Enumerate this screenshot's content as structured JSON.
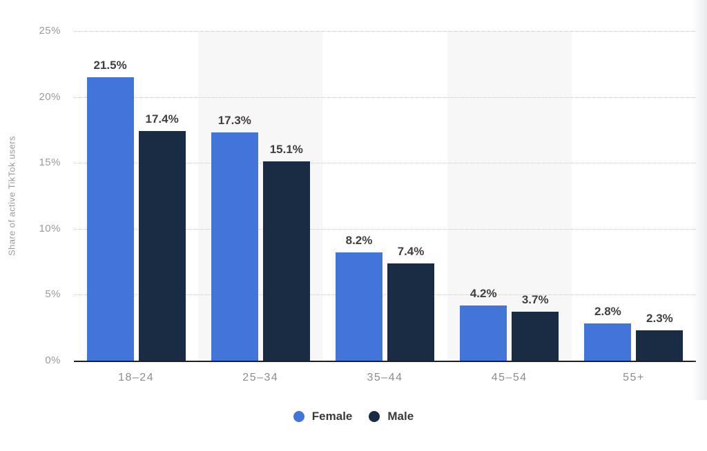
{
  "chart_data": {
    "type": "bar",
    "title": "",
    "categories": [
      "18–24",
      "25–34",
      "35–44",
      "45–54",
      "55+"
    ],
    "series": [
      {
        "name": "Female",
        "color": "#4375d9",
        "values": [
          21.5,
          17.3,
          8.2,
          4.2,
          2.8
        ],
        "labels": [
          "21.5%",
          "17.3%",
          "8.2%",
          "4.2%",
          "2.8%"
        ]
      },
      {
        "name": "Male",
        "color": "#1a2b44",
        "values": [
          17.4,
          15.1,
          7.4,
          3.7,
          2.3
        ],
        "labels": [
          "17.4%",
          "15.1%",
          "7.4%",
          "3.7%",
          "2.3%"
        ]
      }
    ],
    "xlabel": "",
    "ylabel": "Share of active TikTok users",
    "ylim": [
      0,
      25
    ],
    "yticks": [
      0,
      5,
      10,
      15,
      20,
      25
    ],
    "ytick_labels": [
      "0%",
      "5%",
      "10%",
      "15%",
      "20%",
      "25%"
    ],
    "value_suffix": "%",
    "grid": "horizontal-dotted",
    "legend_position": "bottom",
    "alternating_category_bands": [
      1,
      3
    ]
  },
  "colors": {
    "female_bar": "#4375d9",
    "male_bar": "#1a2b44",
    "category_band": "#f7f7f7",
    "gridline": "#c9c9c9",
    "axis_line": "#1f1f1f",
    "value_text": "#3f3f3f",
    "tick_text": "#9a9a9a",
    "x_tick_text": "#8c8c8c",
    "legend_text": "#3a3a3a",
    "background": "#ffffff"
  }
}
